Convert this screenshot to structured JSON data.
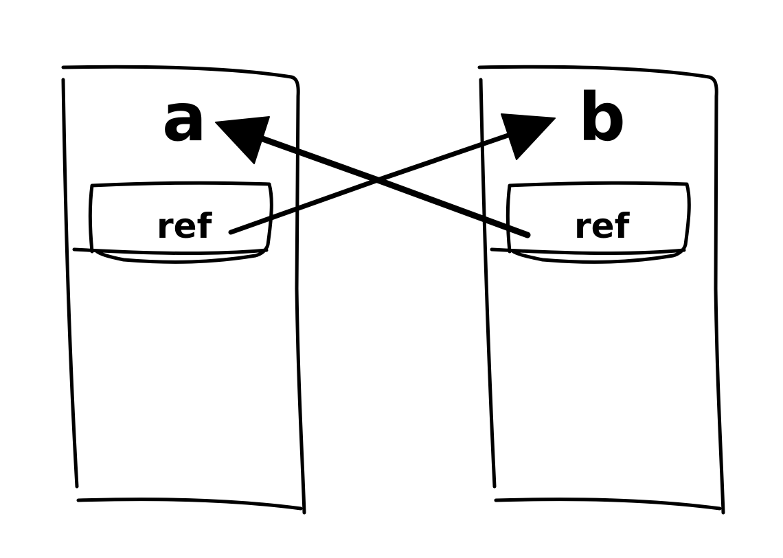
{
  "objects": {
    "a": {
      "label": "a",
      "field_label": "ref"
    },
    "b": {
      "label": "b",
      "field_label": "ref"
    }
  },
  "references": [
    {
      "from": "a.ref",
      "to": "b"
    },
    {
      "from": "b.ref",
      "to": "a"
    }
  ],
  "colors": {
    "ink": "#000000",
    "background": "#ffffff"
  }
}
